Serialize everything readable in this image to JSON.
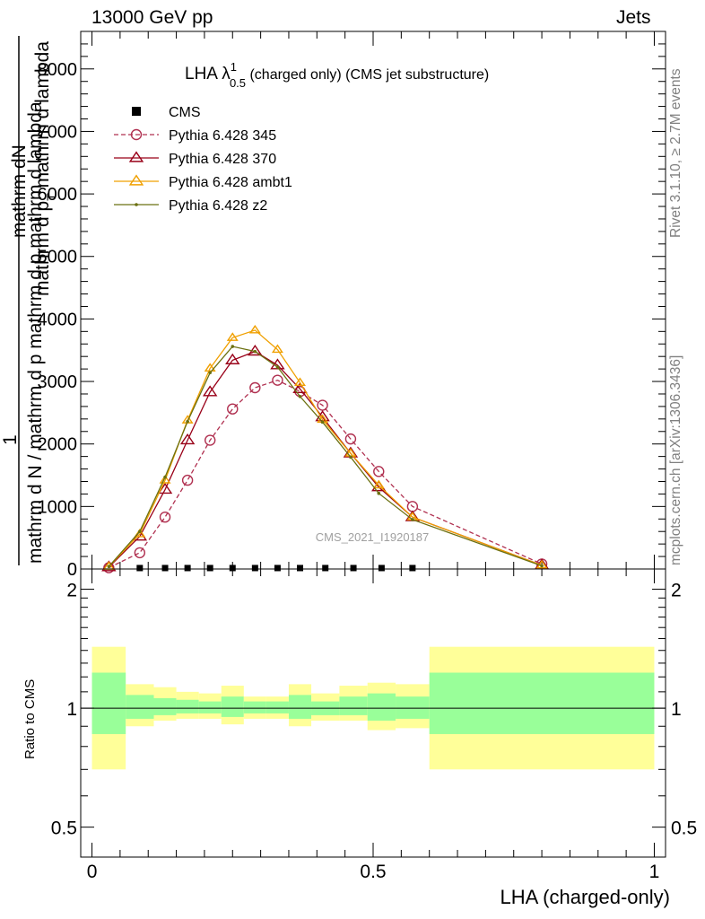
{
  "header": {
    "left": "13000 GeV pp",
    "right": "Jets",
    "side_top": "Rivet 3.1.10, ≥ 2.7M events",
    "side_bottom": "mcplots.cern.ch [arXiv:1306.3436]"
  },
  "chart_data": [
    {
      "type": "line",
      "panel": "main",
      "title_main": "LHA λ",
      "title_sup": "1",
      "title_sub": "0.5",
      "title_rest": " (charged only) (CMS jet substructure)",
      "ylabel_top": "mathrm dN",
      "ylabel_top2": "mathrm d p",
      "ylabel_top2_sub": "T",
      "ylabel_top2_rest": " mathrm d lambda",
      "ylabel_left": "1",
      "ylabel_bottom": "mathrm d N / mathrm d p",
      "ylabel_bottom_rest": " mathrm d p mathrm d lambda",
      "watermark": "CMS_2021_I1920187",
      "xlim": [
        -0.02,
        1.02
      ],
      "ylim": [
        0,
        8600
      ],
      "yticks": [
        0,
        1000,
        2000,
        3000,
        4000,
        5000,
        6000,
        7000,
        8000
      ],
      "ytick_labels": [
        "0",
        "1000",
        "2000",
        "3000",
        "4000",
        "5000",
        "6000",
        "7000",
        "8000"
      ],
      "legend": [
        "CMS",
        "Pythia 6.428 345",
        "Pythia 6.428 370",
        "Pythia 6.428 ambt1",
        "Pythia 6.428 z2"
      ],
      "x": [
        0.03,
        0.085,
        0.13,
        0.17,
        0.21,
        0.25,
        0.29,
        0.33,
        0.37,
        0.41,
        0.46,
        0.51,
        0.57,
        0.8
      ],
      "series": [
        {
          "name": "CMS",
          "color": "#000000",
          "marker": "square",
          "x": [
            0.085,
            0.13,
            0.17,
            0.21,
            0.25,
            0.29,
            0.33,
            0.37,
            0.415,
            0.465,
            0.515,
            0.57
          ],
          "values": [
            15,
            15,
            15,
            15,
            15,
            15,
            15,
            15,
            15,
            15,
            15,
            15
          ]
        },
        {
          "name": "Pythia 6.428 345",
          "color": "#b03050",
          "marker": "circle",
          "dash": true,
          "values": [
            20,
            260,
            830,
            1420,
            2060,
            2560,
            2900,
            3020,
            2840,
            2620,
            2080,
            1560,
            1000,
            80
          ]
        },
        {
          "name": "Pythia 6.428 370",
          "color": "#990018",
          "marker": "triangle",
          "values": [
            30,
            520,
            1270,
            2060,
            2830,
            3340,
            3480,
            3260,
            2880,
            2430,
            1850,
            1310,
            830,
            60
          ]
        },
        {
          "name": "Pythia 6.428 ambt1",
          "color": "#f0a000",
          "marker": "triangle",
          "values": [
            40,
            560,
            1420,
            2380,
            3210,
            3700,
            3820,
            3510,
            2980,
            2390,
            1850,
            1340,
            830,
            60
          ]
        },
        {
          "name": "Pythia 6.428 z2",
          "color": "#6b7010",
          "marker": "dot",
          "values": [
            40,
            600,
            1470,
            2360,
            3140,
            3560,
            3480,
            3230,
            2760,
            2350,
            1790,
            1210,
            790,
            50
          ]
        }
      ]
    },
    {
      "type": "area",
      "panel": "ratio",
      "ylabel": "Ratio to CMS",
      "xlabel": "LHA (charged-only)",
      "xlim": [
        -0.02,
        1.02
      ],
      "ylim": [
        0.42,
        2.25
      ],
      "yticks": [
        0.5,
        1,
        2
      ],
      "ytick_labels": [
        "0.5",
        "1",
        "2"
      ],
      "xticks": [
        0,
        0.5,
        1
      ],
      "xtick_labels": [
        "0",
        "0.5",
        "1"
      ],
      "band_colors": {
        "outer": "#ffff99",
        "inner": "#99ff99"
      },
      "bins": [
        {
          "x0": 0.0,
          "x1": 0.06,
          "outer": [
            0.7,
            1.43
          ],
          "inner": [
            0.86,
            1.23
          ]
        },
        {
          "x0": 0.06,
          "x1": 0.11,
          "outer": [
            0.9,
            1.15
          ],
          "inner": [
            0.94,
            1.08
          ]
        },
        {
          "x0": 0.11,
          "x1": 0.15,
          "outer": [
            0.93,
            1.13
          ],
          "inner": [
            0.96,
            1.06
          ]
        },
        {
          "x0": 0.15,
          "x1": 0.19,
          "outer": [
            0.94,
            1.1
          ],
          "inner": [
            0.97,
            1.05
          ]
        },
        {
          "x0": 0.19,
          "x1": 0.23,
          "outer": [
            0.94,
            1.09
          ],
          "inner": [
            0.97,
            1.04
          ]
        },
        {
          "x0": 0.23,
          "x1": 0.27,
          "outer": [
            0.91,
            1.14
          ],
          "inner": [
            0.95,
            1.07
          ]
        },
        {
          "x0": 0.27,
          "x1": 0.31,
          "outer": [
            0.94,
            1.07
          ],
          "inner": [
            0.97,
            1.04
          ]
        },
        {
          "x0": 0.31,
          "x1": 0.35,
          "outer": [
            0.94,
            1.07
          ],
          "inner": [
            0.97,
            1.04
          ]
        },
        {
          "x0": 0.35,
          "x1": 0.39,
          "outer": [
            0.9,
            1.15
          ],
          "inner": [
            0.94,
            1.08
          ]
        },
        {
          "x0": 0.39,
          "x1": 0.44,
          "outer": [
            0.93,
            1.09
          ],
          "inner": [
            0.96,
            1.04
          ]
        },
        {
          "x0": 0.44,
          "x1": 0.49,
          "outer": [
            0.93,
            1.14
          ],
          "inner": [
            0.96,
            1.07
          ]
        },
        {
          "x0": 0.49,
          "x1": 0.54,
          "outer": [
            0.88,
            1.16
          ],
          "inner": [
            0.93,
            1.09
          ]
        },
        {
          "x0": 0.54,
          "x1": 0.6,
          "outer": [
            0.89,
            1.15
          ],
          "inner": [
            0.94,
            1.07
          ]
        },
        {
          "x0": 0.6,
          "x1": 1.0,
          "outer": [
            0.7,
            1.43
          ],
          "inner": [
            0.86,
            1.23
          ]
        }
      ]
    }
  ]
}
